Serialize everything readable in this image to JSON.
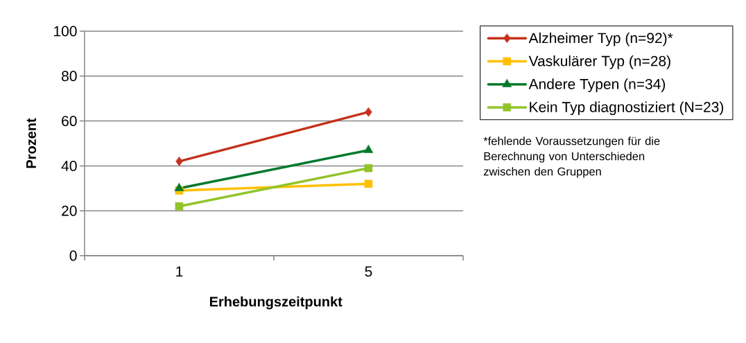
{
  "chart_data": {
    "type": "line",
    "xlabel": "Erhebungszeitpunkt",
    "ylabel": "Prozent",
    "categories": [
      "1",
      "5"
    ],
    "series": [
      {
        "name": "Alzheimer Typ (n=92)*",
        "color": "#c4311c",
        "marker": "diamond",
        "values": [
          42,
          64
        ]
      },
      {
        "name": "Vaskulärer Typ (n=28)",
        "color": "#ffc000",
        "marker": "square",
        "values": [
          29,
          32
        ]
      },
      {
        "name": "Andere Typen (n=34)",
        "color": "#00792a",
        "marker": "triangle",
        "values": [
          30,
          47
        ]
      },
      {
        "name": "Kein Typ diagnostiziert (N=23)",
        "color": "#92c42a",
        "marker": "square",
        "values": [
          22,
          39
        ]
      }
    ],
    "ylim": [
      0,
      100
    ],
    "yticks": [
      0,
      20,
      40,
      60,
      80,
      100
    ],
    "grid": "y",
    "legend": "right",
    "line_style": "solid",
    "annotations": [
      "*fehlende Voraussetzungen für die Berechnung von Unterschieden zwischen den Gruppen"
    ]
  }
}
